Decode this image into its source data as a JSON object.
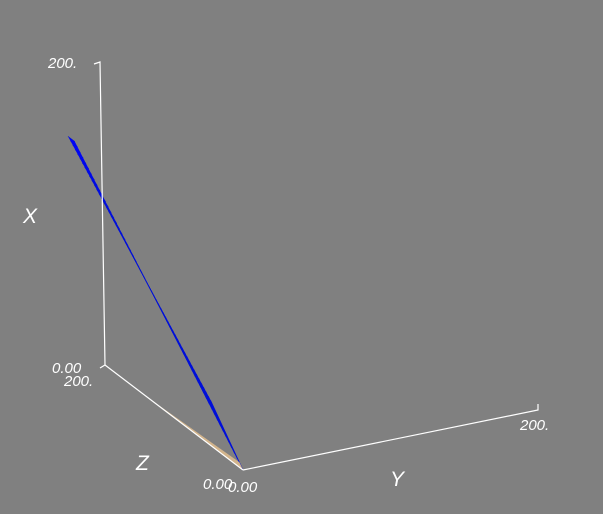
{
  "chart_data": {
    "type": "surface3d",
    "background": "#808080",
    "axes": {
      "x": {
        "title": "X",
        "range": [
          0,
          200
        ],
        "tick_labels": [
          "0.00",
          "200."
        ]
      },
      "y": {
        "title": "Y",
        "range": [
          0,
          200
        ],
        "tick_labels": [
          "0.00",
          "200."
        ]
      },
      "z": {
        "title": "Z",
        "range": [
          0,
          200
        ],
        "tick_labels": [
          "0.00",
          "200."
        ]
      }
    },
    "surfaces": [
      {
        "color": "#0000ff",
        "style": "dense-mesh",
        "vertices": [
          [
            0,
            0,
            0
          ],
          [
            200,
            0,
            35
          ],
          [
            200,
            0,
            45
          ],
          [
            45,
            0,
            0
          ]
        ]
      },
      {
        "color": "#d2b48c",
        "style": "filled",
        "vertices": [
          [
            0,
            0,
            0
          ],
          [
            0,
            0,
            200
          ],
          [
            0,
            0,
            140
          ],
          [
            5,
            0,
            0
          ]
        ]
      }
    ]
  }
}
